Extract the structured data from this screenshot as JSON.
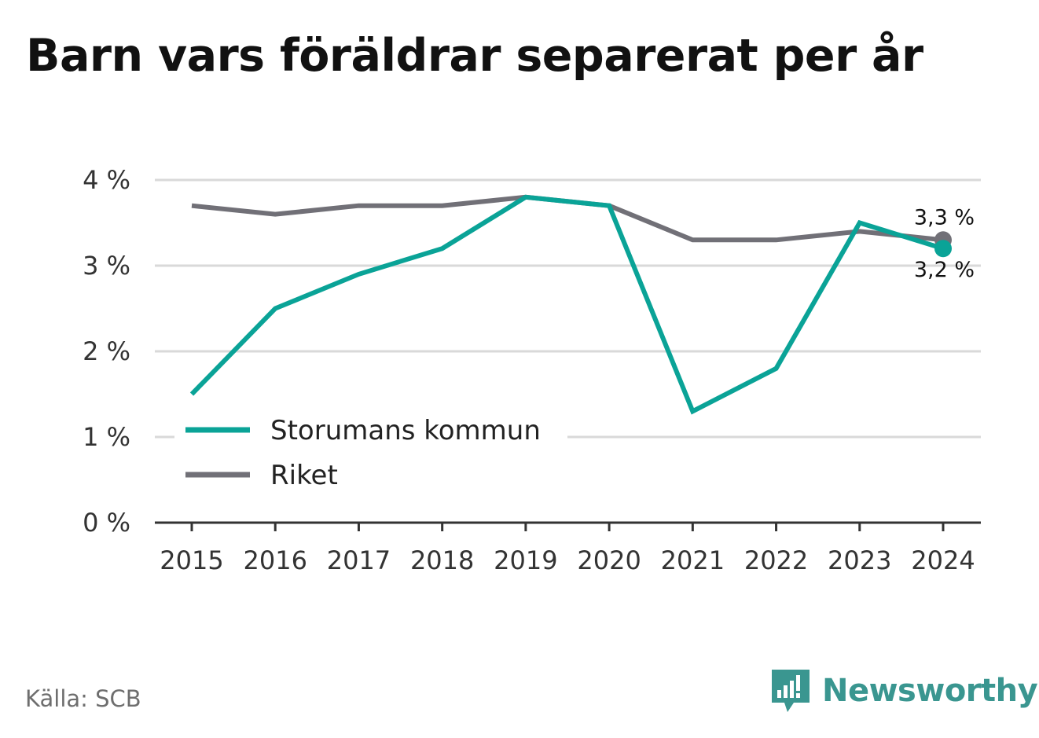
{
  "title": "Barn vars föräldrar separerat per år",
  "source": "Källa: SCB",
  "brand": {
    "name": "Newsworthy",
    "icon": "newsworthy-logo-icon"
  },
  "colors": {
    "kommun": "#0aa397",
    "riket": "#717077",
    "grid": "#d9d9d9",
    "axis": "#333333"
  },
  "chart_data": {
    "type": "line",
    "title": "Barn vars föräldrar separerat per år",
    "xlabel": "",
    "ylabel": "",
    "categories": [
      "2015",
      "2016",
      "2017",
      "2018",
      "2019",
      "2020",
      "2021",
      "2022",
      "2023",
      "2024"
    ],
    "ylim": [
      0,
      4
    ],
    "yticks": [
      0,
      1,
      2,
      3,
      4
    ],
    "ytick_labels": [
      "0 %",
      "1 %",
      "2 %",
      "3 %",
      "4 %"
    ],
    "grid": true,
    "legend_position": "lower-left",
    "series": [
      {
        "name": "Storumans kommun",
        "color": "#0aa397",
        "values": [
          1.5,
          2.5,
          2.9,
          3.2,
          3.8,
          3.7,
          1.3,
          1.8,
          3.5,
          3.2
        ],
        "end_label": "3,2 %"
      },
      {
        "name": "Riket",
        "color": "#717077",
        "values": [
          3.7,
          3.6,
          3.7,
          3.7,
          3.8,
          3.7,
          3.3,
          3.3,
          3.4,
          3.3
        ],
        "end_label": "3,3 %"
      }
    ]
  }
}
